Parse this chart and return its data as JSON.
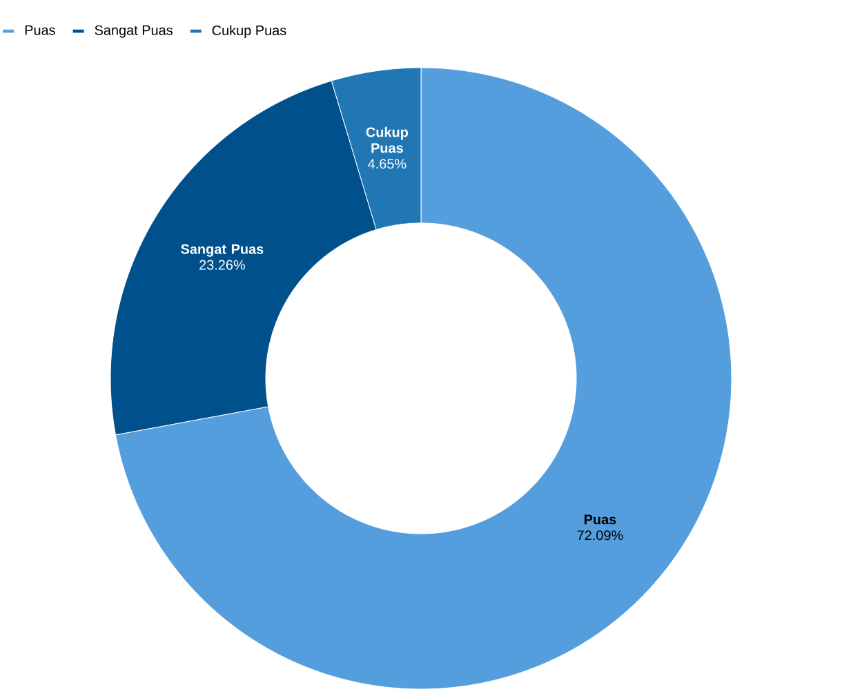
{
  "chart_data": {
    "type": "donut",
    "categories": [
      "Puas",
      "Sangat Puas",
      "Cukup Puas"
    ],
    "values": [
      72.09,
      23.26,
      4.65
    ],
    "value_labels": [
      "72.09%",
      "23.26%",
      "4.65%"
    ],
    "colors": [
      "#559edd",
      "#00518b",
      "#2177b4"
    ],
    "legend": "top left"
  }
}
